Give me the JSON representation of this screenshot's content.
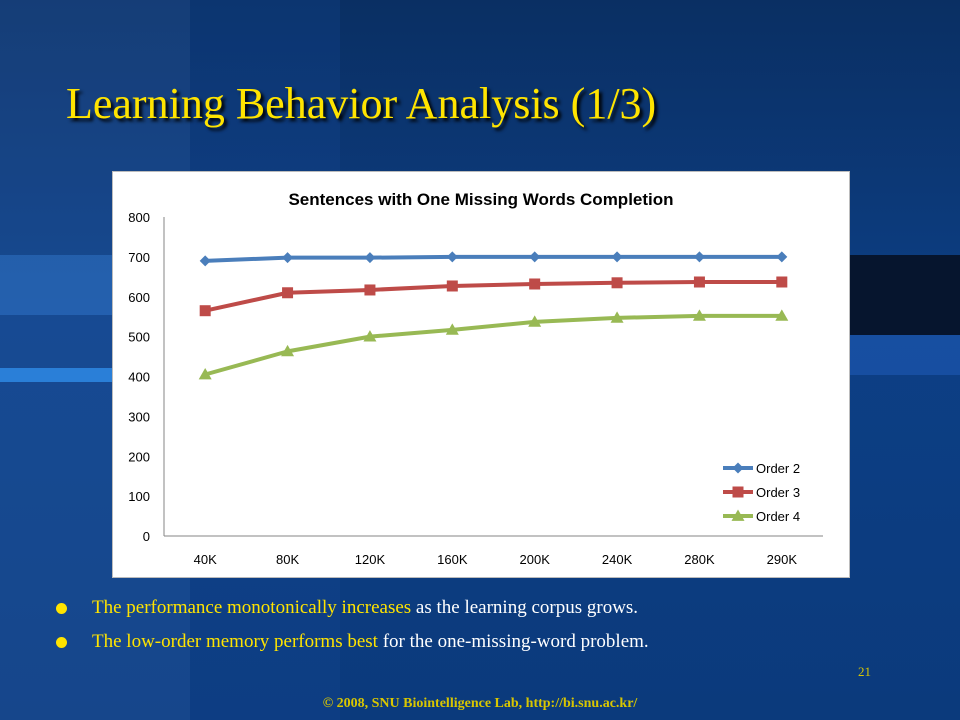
{
  "slide": {
    "title": "Learning Behavior Analysis (1/3)",
    "bullets": [
      {
        "highlight": "The performance monotonically increases",
        "rest": " as the learning corpus grows."
      },
      {
        "highlight": "The low-order memory performs best",
        "rest": " for the one-missing-word problem."
      }
    ],
    "page_number": "21",
    "footer": "© 2008, SNU Biointelligence Lab, http://bi.snu.ac.kr/",
    "colors": {
      "title": "#ffe400",
      "highlight": "#ffe400",
      "body_text": "#ffffff"
    }
  },
  "chart_data": {
    "type": "line",
    "title": "Sentences with One Missing Words Completion",
    "xlabel": "",
    "ylabel": "",
    "categories": [
      "40K",
      "80K",
      "120K",
      "160K",
      "200K",
      "240K",
      "280K",
      "290K"
    ],
    "ylim": [
      0,
      800
    ],
    "yticks": [
      "0",
      "100",
      "200",
      "300",
      "400",
      "500",
      "600",
      "700",
      "800"
    ],
    "grid": false,
    "legend": "bottom-right",
    "series": [
      {
        "name": "Order 2",
        "color": "#4a7ebb",
        "marker": "diamond",
        "values": [
          690,
          698,
          698,
          700,
          700,
          700,
          700,
          700
        ]
      },
      {
        "name": "Order 3",
        "color": "#be4b48",
        "marker": "square",
        "values": [
          565,
          610,
          617,
          627,
          632,
          635,
          637,
          637
        ]
      },
      {
        "name": "Order 4",
        "color": "#98b954",
        "marker": "triangle",
        "values": [
          405,
          463,
          500,
          517,
          537,
          547,
          552,
          552
        ]
      }
    ]
  }
}
